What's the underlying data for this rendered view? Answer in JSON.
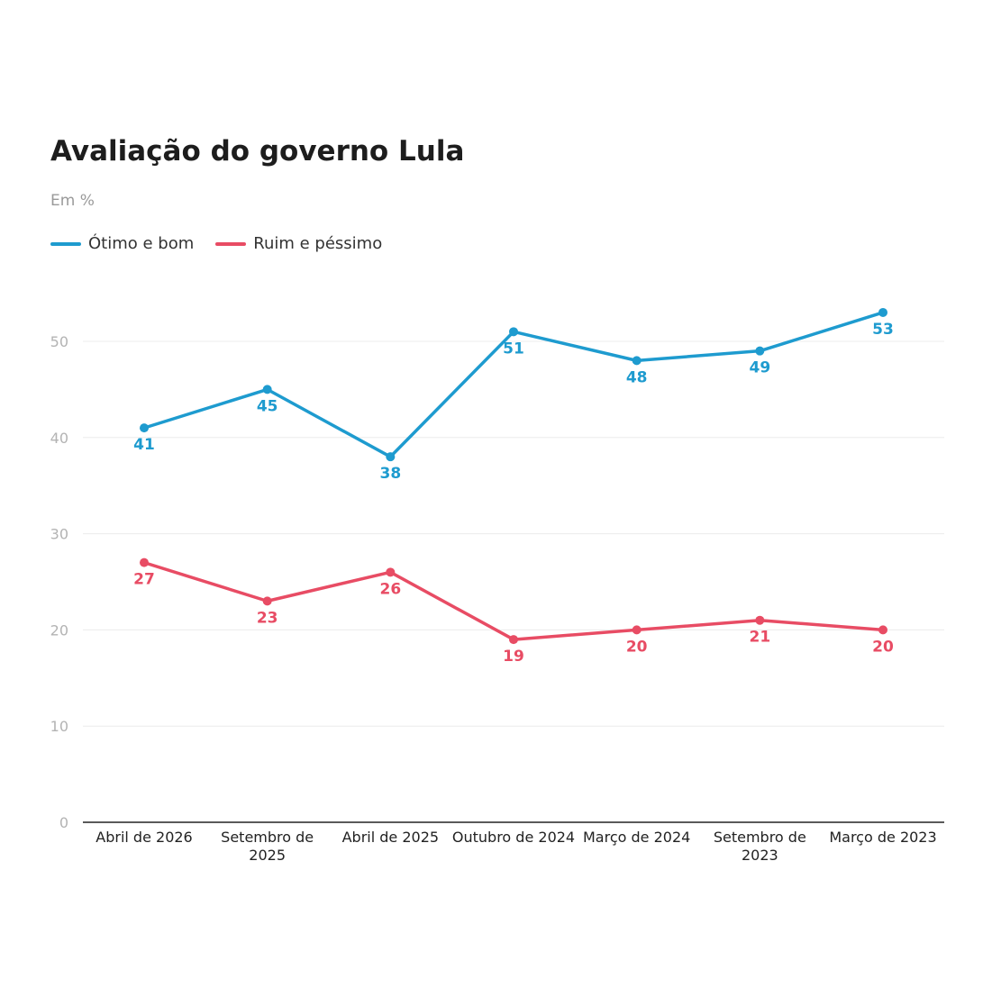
{
  "chart_data": {
    "type": "line",
    "title": "Avaliação do governo Lula",
    "subtitle": "Em %",
    "xlabel": "",
    "ylabel": "",
    "categories": [
      "Abril de 2026",
      "Setembro de 2025",
      "Abril de 2025",
      "Outubro de 2024",
      "Março de 2024",
      "Setembro de 2023",
      "Março de 2023"
    ],
    "series": [
      {
        "name": "Ótimo e bom",
        "color": "#1e9bcf",
        "values": [
          41,
          45,
          38,
          51,
          48,
          49,
          53
        ]
      },
      {
        "name": "Ruim e péssimo",
        "color": "#e84c64",
        "values": [
          27,
          23,
          26,
          19,
          20,
          21,
          20
        ]
      }
    ],
    "ylim": [
      0,
      50
    ],
    "yticks": [
      0,
      10,
      20,
      30,
      40,
      50
    ],
    "grid": true,
    "legend": "top-left"
  }
}
